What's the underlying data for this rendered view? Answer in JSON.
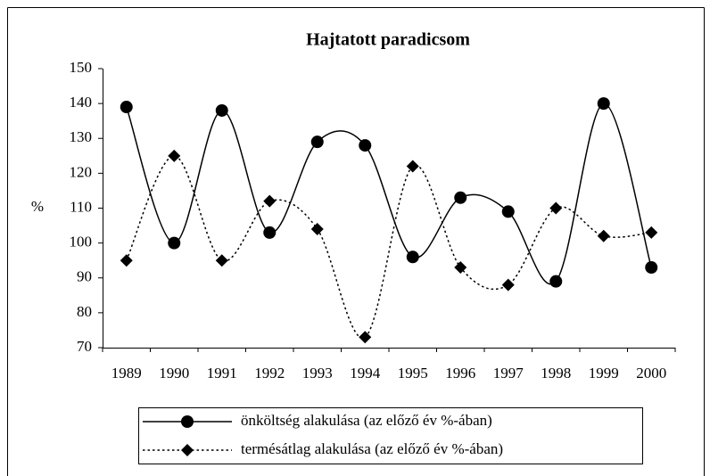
{
  "chart_data": {
    "type": "line",
    "title": "Hajtatott paradicsom",
    "y_label": "%",
    "categories": [
      "1989",
      "1990",
      "1991",
      "1992",
      "1993",
      "1994",
      "1995",
      "1996",
      "1997",
      "1998",
      "1999",
      "2000"
    ],
    "series": [
      {
        "name": "önköltség alakulása (az előző év %-ában)",
        "color": "#000000",
        "marker": "circle",
        "line_style": "solid",
        "values": [
          139,
          100,
          138,
          103,
          129,
          128,
          96,
          113,
          109,
          89,
          140,
          93
        ]
      },
      {
        "name": "termésátlag alakulása (az előző év %-ában)",
        "color": "#000000",
        "marker": "diamond",
        "line_style": "dotted",
        "values": [
          95,
          125,
          95,
          112,
          104,
          73,
          122,
          93,
          88,
          110,
          102,
          103
        ]
      }
    ],
    "ylim": [
      70,
      150
    ],
    "yticks": [
      70,
      80,
      90,
      100,
      110,
      120,
      130,
      140,
      150
    ],
    "smooth": true,
    "legend": "bottom"
  }
}
